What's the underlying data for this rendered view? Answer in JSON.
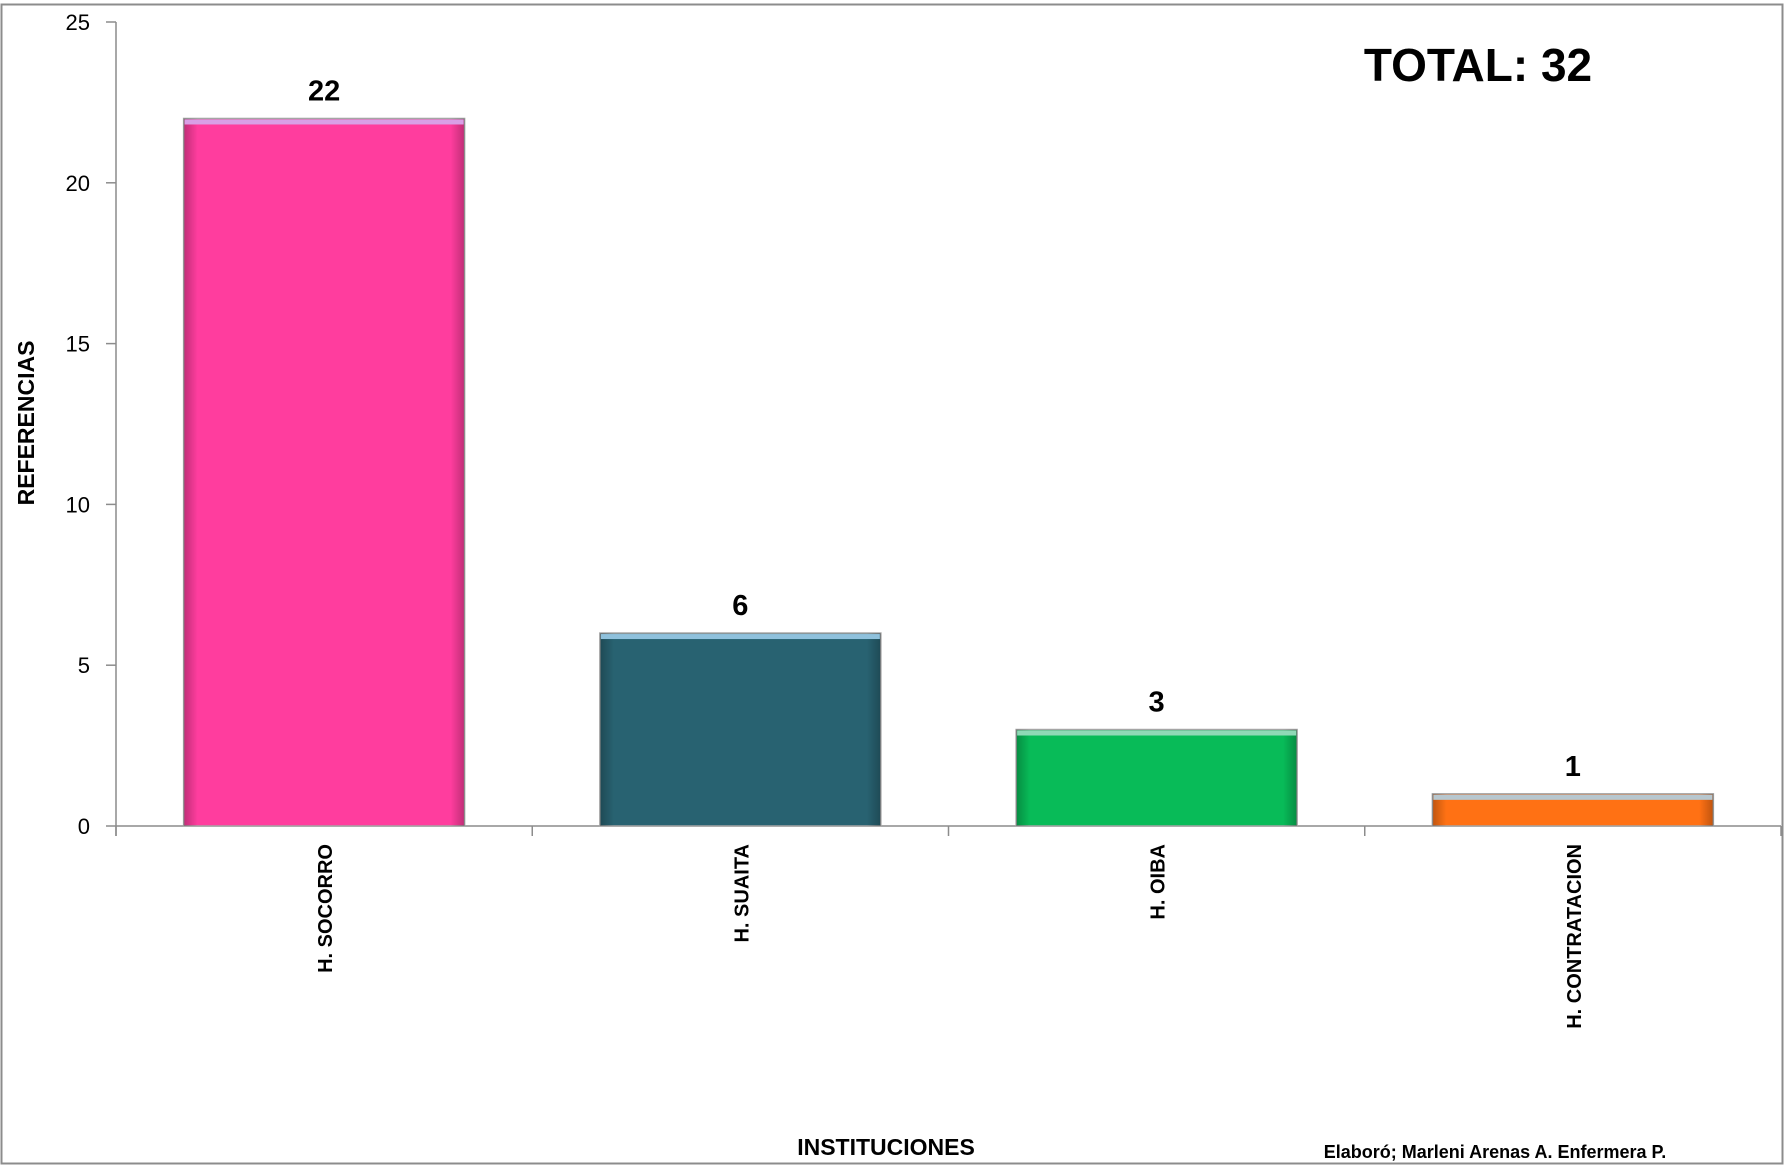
{
  "annotations": {
    "total": "TOTAL: 32",
    "credit": "Elaboró; Marleni Arenas A. Enfermera P."
  },
  "chart_data": {
    "type": "bar",
    "title": "",
    "xlabel": "INSTITUCIONES",
    "ylabel": "REFERENCIAS",
    "categories": [
      "H. SOCORRO",
      "H. SUAITA",
      "H. OIBA",
      "H. CONTRATACION"
    ],
    "values": [
      22,
      6,
      3,
      1
    ],
    "data_labels": [
      "22",
      "6",
      "3",
      "1"
    ],
    "bar_colors": [
      "#ff3d9e",
      "#286271",
      "#08bb58",
      "#ff7114"
    ],
    "bar_top_colors": [
      "#d99fe6",
      "#8fc1dc",
      "#8fd9b6",
      "#b7c7cf"
    ],
    "ylim": [
      0,
      25
    ],
    "yticks": [
      0,
      5,
      10,
      15,
      20,
      25
    ],
    "ytick_labels": [
      "0",
      "5",
      "10",
      "15",
      "20",
      "25"
    ],
    "grid": false,
    "legend": "none"
  }
}
